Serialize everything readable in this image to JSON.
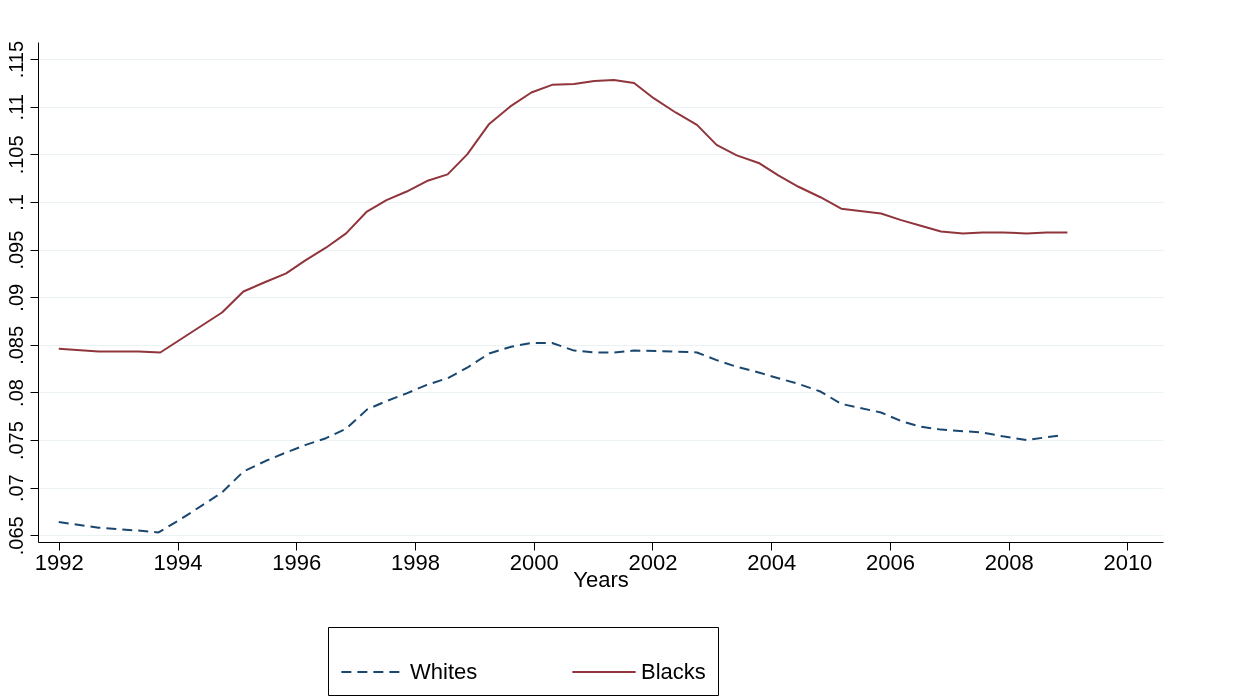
{
  "chart_data": {
    "type": "line",
    "xlabel": "Years",
    "xlim": [
      1991.65,
      2010.6
    ],
    "xticks": [
      1992,
      1994,
      1996,
      1998,
      2000,
      2002,
      2004,
      2006,
      2008,
      2010
    ],
    "ylim": [
      0.0643,
      0.1168
    ],
    "yticks": [
      {
        "value": 0.065,
        "label": ".065"
      },
      {
        "value": 0.07,
        "label": ".07"
      },
      {
        "value": 0.075,
        "label": ".075"
      },
      {
        "value": 0.08,
        "label": ".08"
      },
      {
        "value": 0.085,
        "label": ".085"
      },
      {
        "value": 0.09,
        "label": ".09"
      },
      {
        "value": 0.095,
        "label": ".095"
      },
      {
        "value": 0.1,
        "label": ".1"
      },
      {
        "value": 0.105,
        "label": ".105"
      },
      {
        "value": 0.11,
        "label": ".11"
      },
      {
        "value": 0.115,
        "label": ".115"
      }
    ],
    "grid": "y",
    "legend": "bottom",
    "marker": "none",
    "series": [
      {
        "name": "Whites",
        "color": "#1a476f",
        "line_style": "dashed",
        "x": [
          1992.0,
          1992.67,
          1993.34,
          1993.68,
          1994.08,
          1994.75,
          1995.11,
          1995.48,
          1995.83,
          1996.16,
          1996.5,
          1996.84,
          1997.19,
          1997.52,
          1997.86,
          1998.2,
          1998.55,
          1998.88,
          1999.25,
          1999.62,
          1999.96,
          2000.31,
          2000.68,
          2001.02,
          2001.35,
          2001.69,
          2002.39,
          2002.75,
          2003.08,
          2003.42,
          2003.79,
          2004.12,
          2004.46,
          2004.83,
          2005.18,
          2005.85,
          2006.19,
          2006.52,
          2006.86,
          2007.56,
          2007.9,
          2008.3,
          2008.64,
          2008.87
        ],
        "values": [
          0.0664,
          0.0658,
          0.0655,
          0.0653,
          0.0668,
          0.0695,
          0.0717,
          0.0728,
          0.0737,
          0.0745,
          0.0752,
          0.0762,
          0.0782,
          0.0791,
          0.0799,
          0.0808,
          0.0815,
          0.0826,
          0.0841,
          0.0848,
          0.0852,
          0.0852,
          0.0844,
          0.0842,
          0.0842,
          0.0844,
          0.0843,
          0.0842,
          0.0834,
          0.0827,
          0.0821,
          0.0815,
          0.0809,
          0.0801,
          0.0788,
          0.0779,
          0.077,
          0.0764,
          0.0761,
          0.0758,
          0.0754,
          0.075,
          0.0753,
          0.0755
        ]
      },
      {
        "name": "Blacks",
        "color": "#90353b",
        "line_style": "solid",
        "x": [
          1992.0,
          1992.67,
          1993.34,
          1993.71,
          1994.75,
          1995.11,
          1995.48,
          1995.83,
          1996.16,
          1996.5,
          1996.84,
          1997.19,
          1997.52,
          1997.86,
          1998.2,
          1998.55,
          1998.88,
          1999.25,
          1999.62,
          1999.96,
          2000.31,
          2000.68,
          2001.02,
          2001.35,
          2001.69,
          2002.02,
          2002.39,
          2002.75,
          2003.08,
          2003.42,
          2003.79,
          2004.12,
          2004.46,
          2004.83,
          2005.18,
          2005.85,
          2006.19,
          2006.52,
          2006.86,
          2007.23,
          2007.56,
          2007.9,
          2008.3,
          2008.64,
          2008.99
        ],
        "values": [
          0.0846,
          0.0843,
          0.0843,
          0.0842,
          0.0884,
          0.0906,
          0.0916,
          0.0925,
          0.0939,
          0.0952,
          0.0967,
          0.099,
          0.1002,
          0.1011,
          0.1022,
          0.1029,
          0.105,
          0.1082,
          0.1101,
          0.1115,
          0.1123,
          0.1124,
          0.1127,
          0.1128,
          0.1125,
          0.1109,
          0.1094,
          0.1081,
          0.106,
          0.1049,
          0.1041,
          0.1028,
          0.1016,
          0.1005,
          0.0993,
          0.0988,
          0.0981,
          0.0975,
          0.0969,
          0.0967,
          0.0968,
          0.0968,
          0.0967,
          0.0968,
          0.0968
        ]
      }
    ]
  }
}
